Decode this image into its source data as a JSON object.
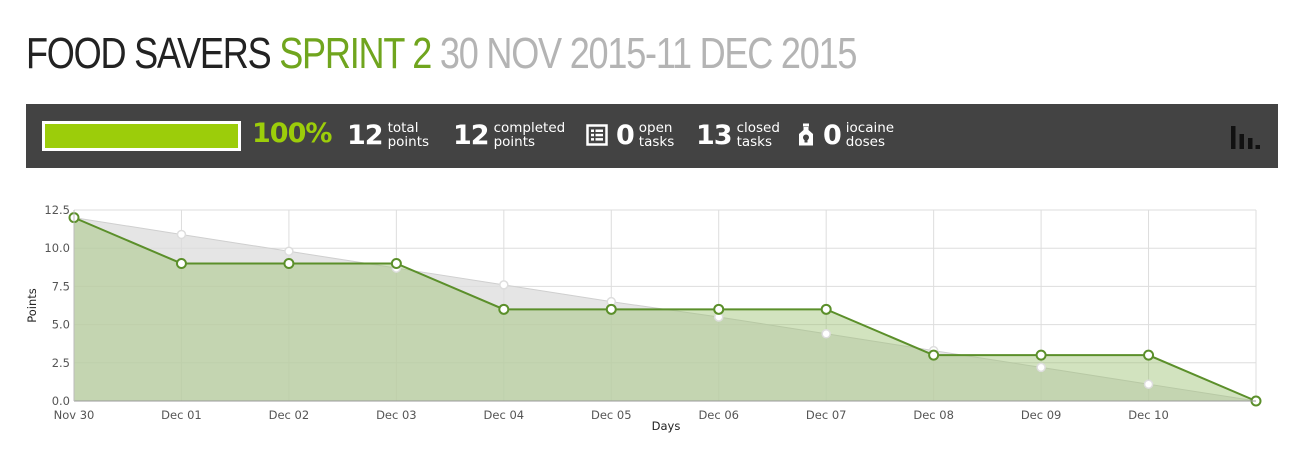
{
  "header": {
    "project": "FOOD SAVERS",
    "sprint": "SPRINT 2",
    "dates": "30 NOV 2015-11 DEC 2015"
  },
  "stats": {
    "progress_percent": 100,
    "progress_label": "100%",
    "total_points": {
      "value": "12",
      "label1": "total",
      "label2": "points"
    },
    "completed_points": {
      "value": "12",
      "label1": "completed",
      "label2": "points"
    },
    "open_tasks": {
      "value": "0",
      "label1": "open",
      "label2": "tasks",
      "icon": "task-list-icon"
    },
    "closed_tasks": {
      "value": "13",
      "label1": "closed",
      "label2": "tasks"
    },
    "iocaine_doses": {
      "value": "0",
      "label1": "iocaine",
      "label2": "doses",
      "icon": "poison-bottle-icon"
    },
    "chart_toggle_icon": "bar-chart-icon"
  },
  "colors": {
    "accent_green": "#9ccd0a",
    "sprint_green": "#70a51e",
    "bar_bg": "#434343",
    "actual_line": "#5b8f2a",
    "actual_fill": "#c9dcae",
    "ideal_fill": "#e2e2e2"
  },
  "chart_data": {
    "type": "area",
    "xlabel": "Days",
    "ylabel": "Points",
    "ylim": [
      0,
      12.5
    ],
    "y_ticks": [
      "0.0",
      "2.5",
      "5.0",
      "7.5",
      "10.0",
      "12.5"
    ],
    "categories": [
      "Nov 30",
      "Dec 01",
      "Dec 02",
      "Dec 03",
      "Dec 04",
      "Dec 05",
      "Dec 06",
      "Dec 07",
      "Dec 08",
      "Dec 09",
      "Dec 10",
      ""
    ],
    "series": [
      {
        "values": [
          12,
          10.9,
          9.8,
          8.7,
          7.6,
          6.5,
          5.5,
          4.4,
          3.3,
          2.2,
          1.1,
          0
        ]
      },
      {
        "values": [
          12,
          9,
          9,
          9,
          6,
          6,
          6,
          6,
          3,
          3,
          3,
          0
        ]
      }
    ],
    "grid": true
  }
}
